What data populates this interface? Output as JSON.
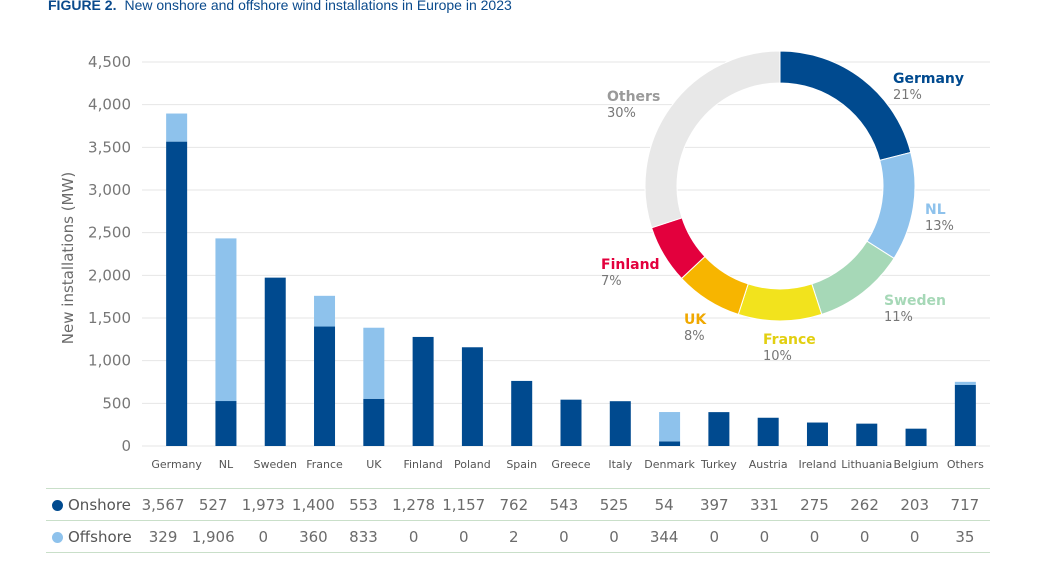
{
  "figure": {
    "label": "FIGURE 2.",
    "title": "New onshore and offshore wind installations in Europe in 2023"
  },
  "chart_data": [
    {
      "type": "bar",
      "stacked": true,
      "ylabel": "New installations (MW)",
      "ylim": [
        0,
        4500
      ],
      "yticks": [
        "0",
        "500",
        "1,000",
        "1,500",
        "2,000",
        "2,500",
        "3,000",
        "3,500",
        "4,000",
        "4,500"
      ],
      "grid": true,
      "categories": [
        "Germany",
        "NL",
        "Sweden",
        "France",
        "UK",
        "Finland",
        "Poland",
        "Spain",
        "Greece",
        "Italy",
        "Denmark",
        "Turkey",
        "Austria",
        "Ireland",
        "Lithuania",
        "Belgium",
        "Others"
      ],
      "series": [
        {
          "name": "Onshore",
          "color": "#004a8f",
          "values": [
            3567,
            527,
            1973,
            1400,
            553,
            1278,
            1157,
            762,
            543,
            525,
            54,
            397,
            331,
            275,
            262,
            203,
            717
          ]
        },
        {
          "name": "Offshore",
          "color": "#8ec2ec",
          "values": [
            329,
            1906,
            0,
            360,
            833,
            0,
            0,
            2,
            0,
            0,
            344,
            0,
            0,
            0,
            0,
            0,
            35
          ]
        }
      ]
    },
    {
      "type": "pie",
      "donut": true,
      "slices": [
        {
          "label": "Germany",
          "value": 21,
          "pct": "21%",
          "color": "#004a8f"
        },
        {
          "label": "NL",
          "value": 13,
          "pct": "13%",
          "color": "#8ec2ec"
        },
        {
          "label": "Sweden",
          "value": 11,
          "pct": "11%",
          "color": "#a6d8b7"
        },
        {
          "label": "France",
          "value": 10,
          "pct": "10%",
          "color": "#f2e31d"
        },
        {
          "label": "UK",
          "value": 8,
          "pct": "8%",
          "color": "#f7b500"
        },
        {
          "label": "Finland",
          "value": 7,
          "pct": "7%",
          "color": "#e3003d"
        },
        {
          "label": "Others",
          "value": 30,
          "pct": "30%",
          "color": "#e8e8e8"
        }
      ]
    }
  ],
  "table": {
    "rows": [
      {
        "series": "Onshore",
        "color": "#004a8f",
        "cells": [
          "3,567",
          "527",
          "1,973",
          "1,400",
          "553",
          "1,278",
          "1,157",
          "762",
          "543",
          "525",
          "54",
          "397",
          "331",
          "275",
          "262",
          "203",
          "717"
        ]
      },
      {
        "series": "Offshore",
        "color": "#8ec2ec",
        "cells": [
          "329",
          "1,906",
          "0",
          "360",
          "833",
          "0",
          "0",
          "2",
          "0",
          "0",
          "344",
          "0",
          "0",
          "0",
          "0",
          "0",
          "35"
        ]
      }
    ]
  }
}
